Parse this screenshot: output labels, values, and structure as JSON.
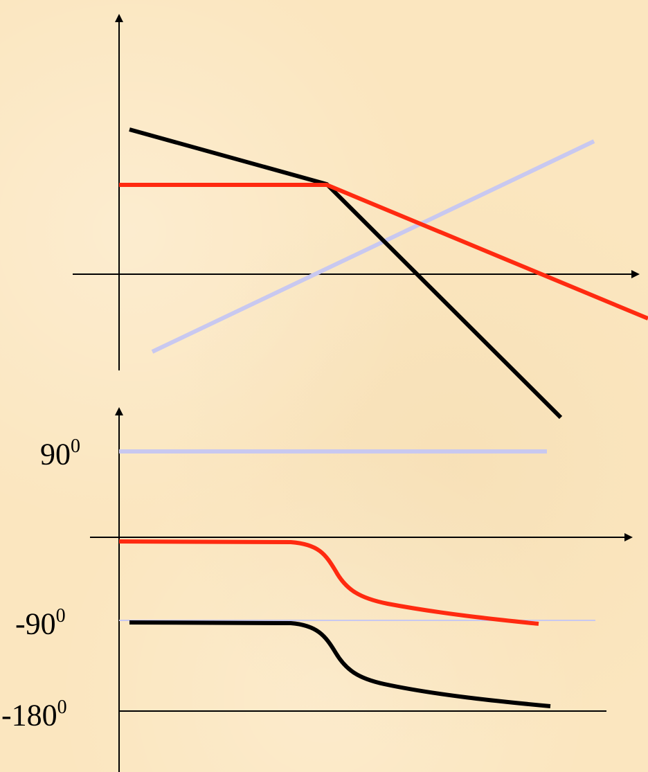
{
  "labels": {
    "phase_90": {
      "value": "90",
      "sup": "0"
    },
    "phase_minus90": {
      "value": "-90",
      "sup": "0"
    },
    "phase_minus180": {
      "value": "-180",
      "sup": "0"
    }
  },
  "colors": {
    "background": "#fbe6bf",
    "axis": "#000000",
    "black_curve": "#000000",
    "red_curve": "#ff2a10",
    "lavender_curve": "#c8c8f0"
  }
}
